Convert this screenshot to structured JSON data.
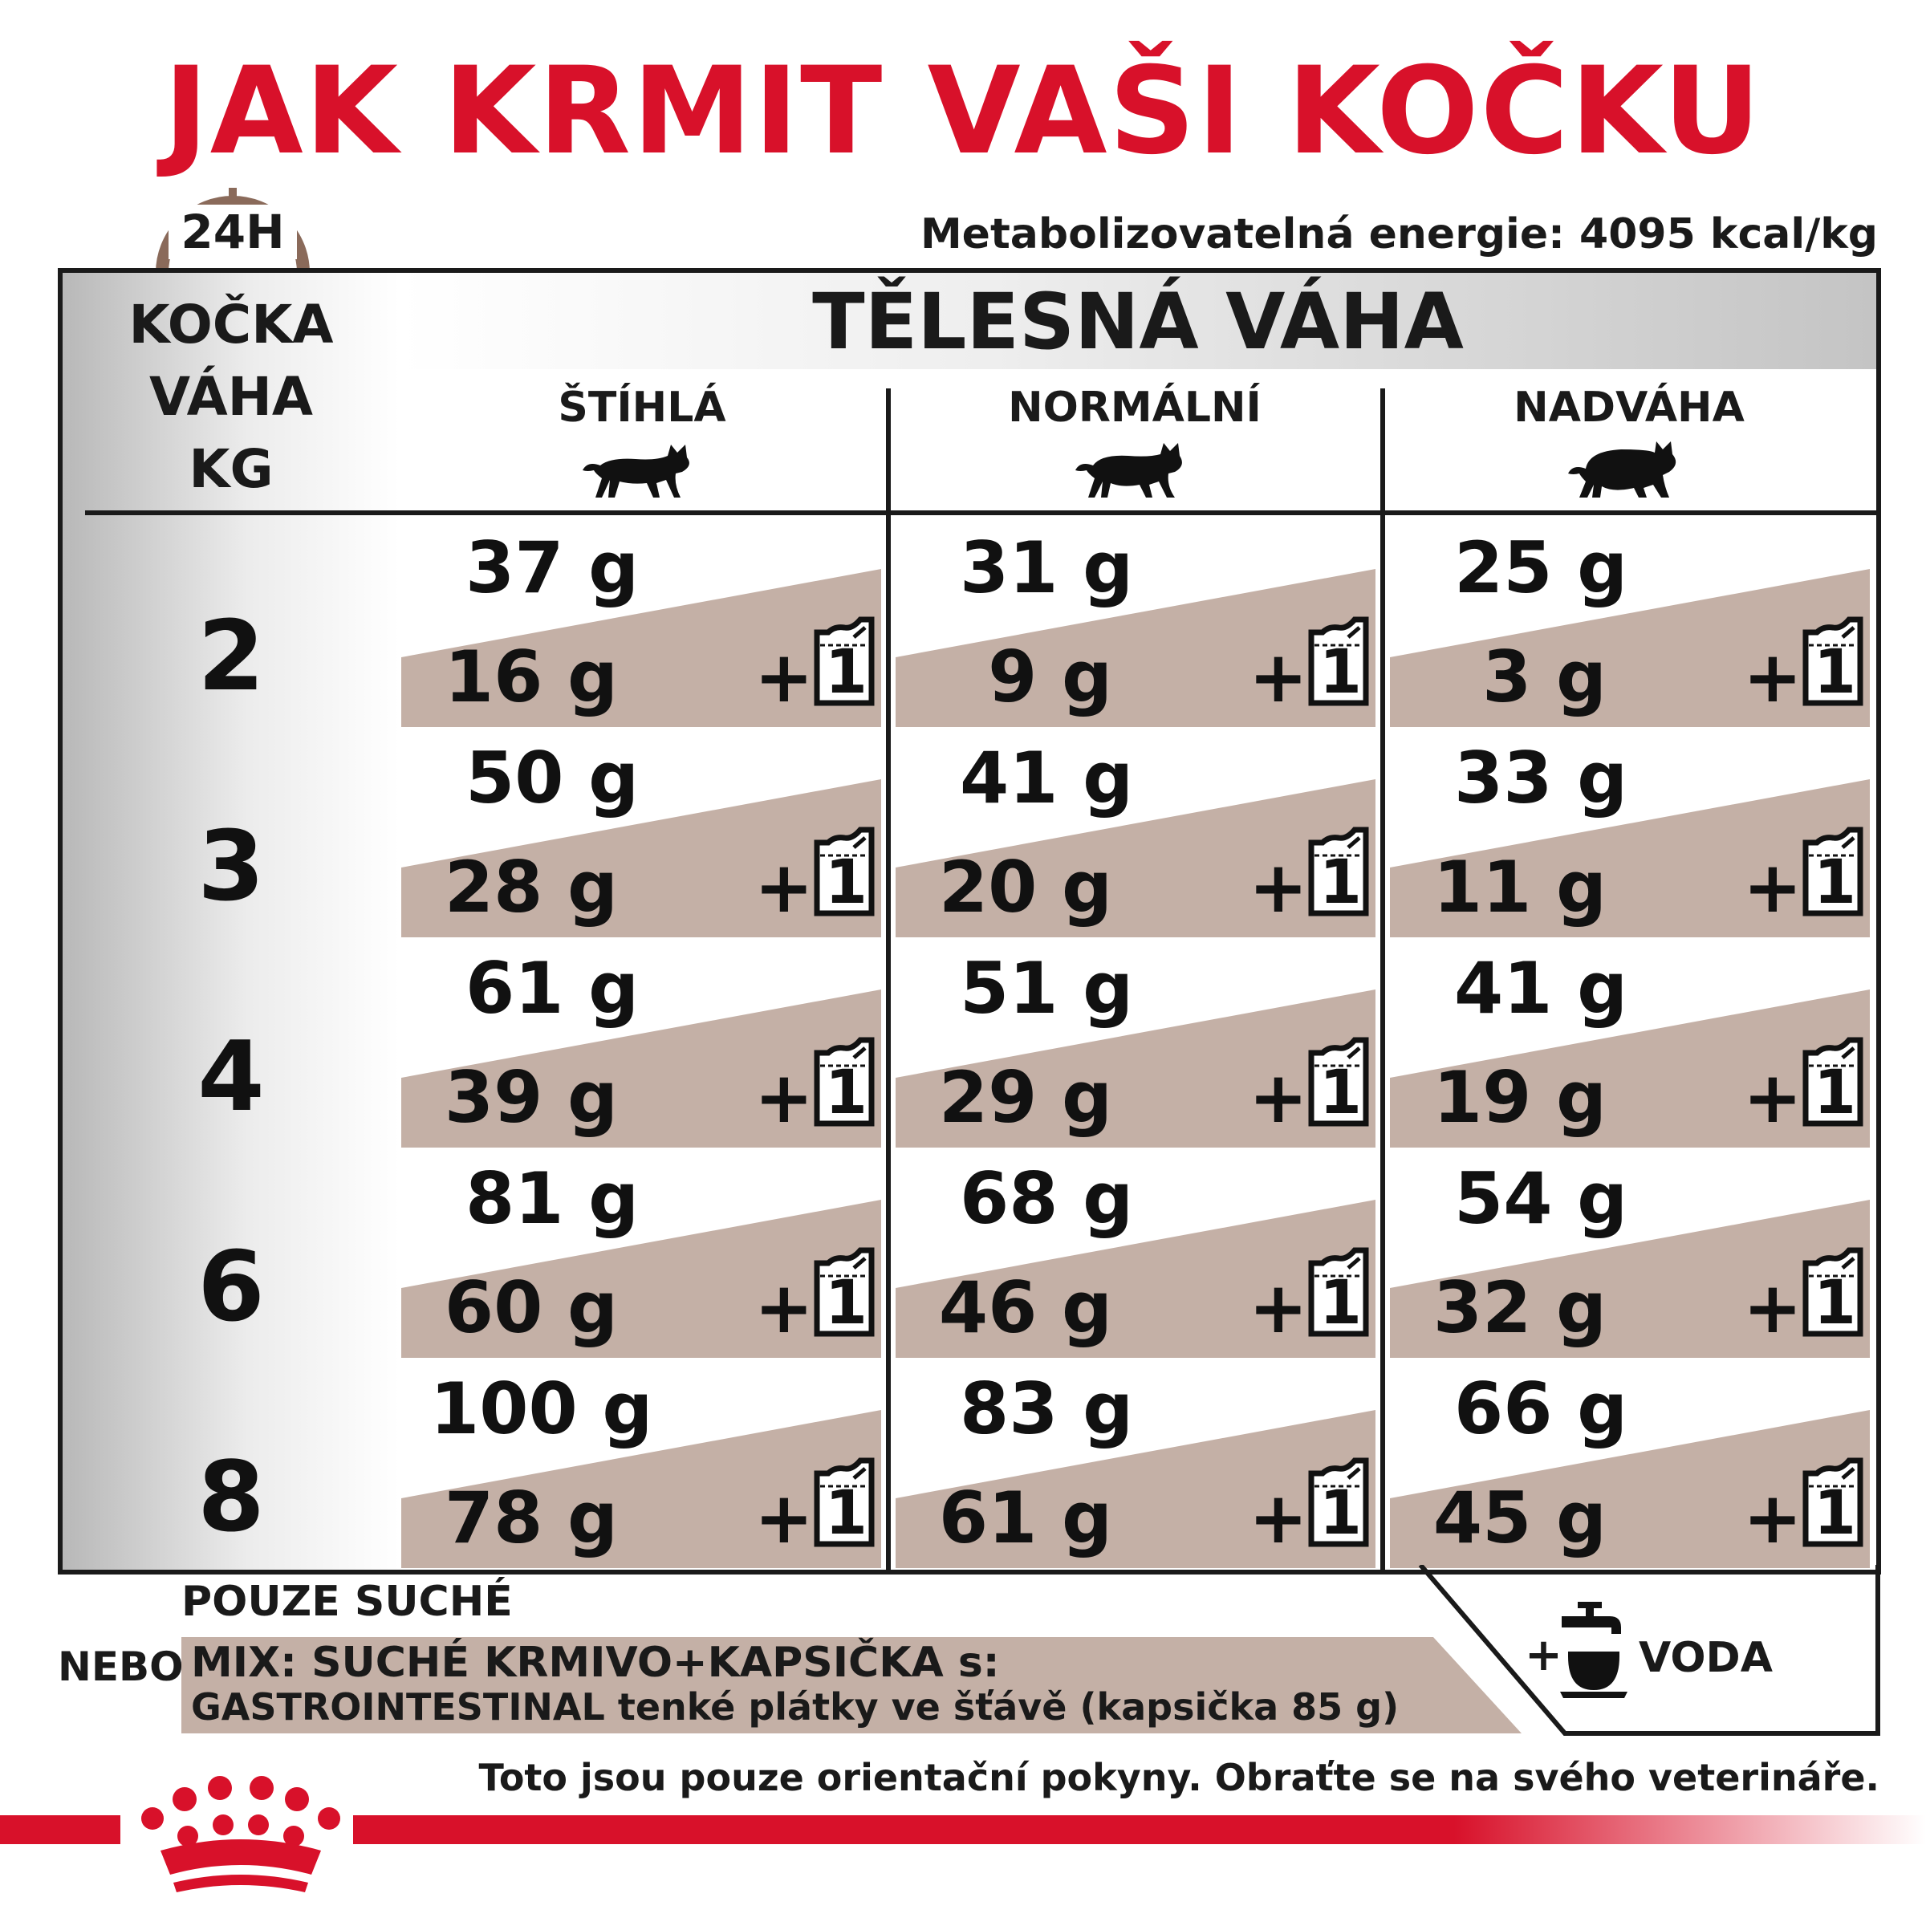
{
  "title": "JAK KRMIT VAŠI KOČKU",
  "clock_label": "24H",
  "energy": "Metabolizovatelná energie: 4095 kcal/kg",
  "table": {
    "row_header": [
      "KOČKA",
      "VÁHA",
      "KG"
    ],
    "header": "TĚLESNÁ VÁHA",
    "columns": [
      "ŠTÍHLÁ",
      "NORMÁLNÍ",
      "NADVÁHA"
    ],
    "rows": [
      {
        "weight": "2",
        "cells": [
          {
            "dry": "37 g",
            "mix": "16 g"
          },
          {
            "dry": "31 g",
            "mix": "9 g"
          },
          {
            "dry": "25 g",
            "mix": "3 g"
          }
        ]
      },
      {
        "weight": "3",
        "cells": [
          {
            "dry": "50 g",
            "mix": "28 g"
          },
          {
            "dry": "41 g",
            "mix": "20 g"
          },
          {
            "dry": "33 g",
            "mix": "11 g"
          }
        ]
      },
      {
        "weight": "4",
        "cells": [
          {
            "dry": "61 g",
            "mix": "39 g"
          },
          {
            "dry": "51 g",
            "mix": "29 g"
          },
          {
            "dry": "41 g",
            "mix": "19 g"
          }
        ]
      },
      {
        "weight": "6",
        "cells": [
          {
            "dry": "81 g",
            "mix": "60 g"
          },
          {
            "dry": "68 g",
            "mix": "46 g"
          },
          {
            "dry": "54 g",
            "mix": "32 g"
          }
        ]
      },
      {
        "weight": "8",
        "cells": [
          {
            "dry": "100 g",
            "mix": "78 g"
          },
          {
            "dry": "83 g",
            "mix": "61 g"
          },
          {
            "dry": "66 g",
            "mix": "45 g"
          }
        ]
      }
    ],
    "plus": "+",
    "pouch_count": "1"
  },
  "legend": {
    "dry_only": "POUZE SUCHÉ",
    "or": "NEBO",
    "mix_line1": "MIX: SUCHÉ KRMIVO+KAPSIČKA s:",
    "mix_line2": "GASTROINTESTINAL tenké plátky ve šťávě (kapsička 85 g)",
    "water_plus": "+",
    "water": "VODA"
  },
  "disclaimer": "Toto jsou pouze orientační pokyny. Obraťte se na svého veterináře.",
  "colors": {
    "brand_red": "#d8112a",
    "mix_band": "#c4b0a6",
    "clock_brown": "#8a6a5a"
  },
  "icons": [
    "clock-icon",
    "cat-slim-icon",
    "cat-normal-icon",
    "cat-overweight-icon",
    "pouch-icon",
    "water-tap-icon",
    "royal-canin-crown-logo"
  ]
}
